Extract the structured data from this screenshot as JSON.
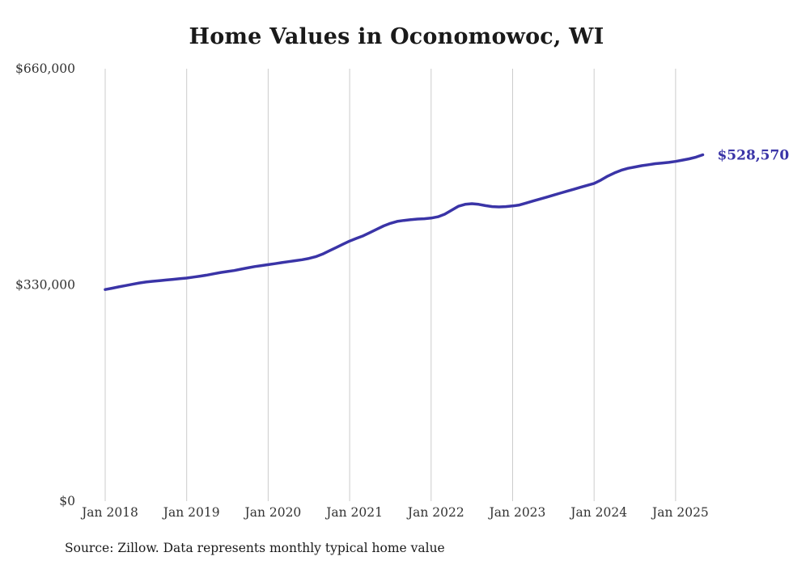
{
  "source_note": "Source: Zillow. Data represents monthly typical home value",
  "chart_data": {
    "type": "line",
    "title": "Home Values in Oconomowoc, WI",
    "xlabel": "",
    "ylabel": "",
    "ylim": [
      0,
      660000
    ],
    "y_ticks": [
      0,
      330000,
      660000
    ],
    "y_tick_labels": [
      "$0",
      "$330,000",
      "$660,000"
    ],
    "x_tick_labels": [
      "Jan 2018",
      "Jan 2019",
      "Jan 2020",
      "Jan 2021",
      "Jan 2022",
      "Jan 2023",
      "Jan 2024",
      "Jan 2025"
    ],
    "x_start": "Jan 2018",
    "x_frequency": "monthly",
    "grid": "vertical-only",
    "legend": "none",
    "line_color": "#3a34a7",
    "gridline_color": "#cccccc",
    "tick_label_color": "#333333",
    "annotation": {
      "text": "$528,570",
      "value": 528570,
      "position": "line-end-right"
    },
    "series": [
      {
        "name": "Typical home value",
        "values": [
          323000,
          325000,
          327000,
          329000,
          331000,
          333000,
          334500,
          335500,
          336500,
          337500,
          338500,
          339500,
          340500,
          342000,
          343500,
          345000,
          347000,
          349000,
          350500,
          352000,
          354000,
          356000,
          358000,
          359500,
          361000,
          362500,
          364000,
          365500,
          367000,
          368500,
          370500,
          373000,
          377000,
          382000,
          387000,
          392000,
          397000,
          401000,
          405000,
          410000,
          415000,
          420000,
          424000,
          427000,
          428500,
          429500,
          430500,
          431000,
          432000,
          434000,
          438000,
          444000,
          450000,
          453000,
          454000,
          453000,
          451000,
          449500,
          449000,
          449500,
          450500,
          452000,
          455000,
          458000,
          461000,
          464000,
          467000,
          470000,
          473000,
          476000,
          479000,
          482000,
          485000,
          490000,
          496000,
          501000,
          505000,
          508000,
          510000,
          512000,
          513500,
          515000,
          516000,
          517000,
          518500,
          520500,
          522500,
          525000,
          528570
        ]
      }
    ]
  }
}
